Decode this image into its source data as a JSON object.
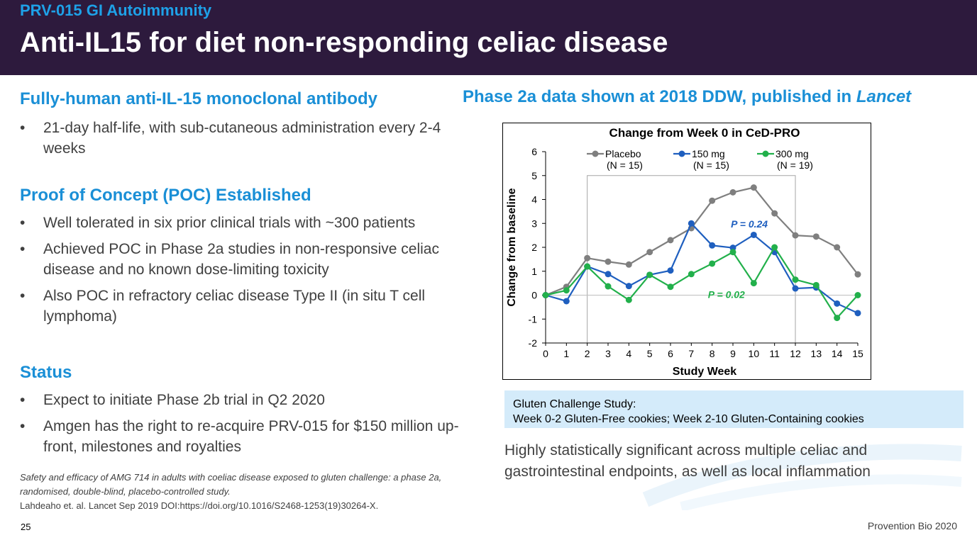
{
  "header": {
    "kicker": "PRV-015 GI Autoimmunity",
    "title": "Anti-IL15 for diet non-responding celiac disease"
  },
  "left": {
    "sections": [
      {
        "title": "Fully-human anti-IL-15 monoclonal antibody",
        "bullets": [
          "21-day half-life, with sub-cutaneous administration every 2-4 weeks"
        ]
      },
      {
        "title": "Proof of Concept (POC) Established",
        "bullets": [
          "Well tolerated in six prior clinical trials with ~300 patients",
          "Achieved POC in Phase 2a studies in non-responsive celiac disease and no known dose-limiting toxicity",
          "Also POC in refractory celiac disease Type II (in situ T cell lymphoma)"
        ]
      },
      {
        "title": "Status",
        "bullets": [
          "Expect to initiate Phase 2b trial in Q2 2020",
          "Amgen has the right to re-acquire PRV-015 for $150 million up-front, milestones and royalties"
        ]
      }
    ],
    "bullet_glyph": "•"
  },
  "right": {
    "title_prefix": "Phase 2a data shown at 2018 DDW, published in ",
    "title_italic": "Lancet",
    "study_box": {
      "line1": "Gluten Challenge Study:",
      "line2": "Week 0-2 Gluten-Free cookies; Week 2-10 Gluten-Containing cookies"
    },
    "conclusion": "Highly statistically significant across multiple celiac and gastrointestinal endpoints, as well as local inflammation"
  },
  "chart_data": {
    "type": "line",
    "title": "Change from Week 0 in CeD-PRO",
    "xlabel": "Study Week",
    "ylabel": "Change from baseline",
    "x": [
      0,
      1,
      2,
      3,
      4,
      5,
      6,
      7,
      8,
      9,
      10,
      11,
      12,
      13,
      14,
      15
    ],
    "xlim": [
      0,
      15
    ],
    "ylim": [
      -2,
      6
    ],
    "yticks": [
      -2,
      -1,
      0,
      1,
      2,
      3,
      4,
      5,
      6
    ],
    "legend_placement": "top",
    "series": [
      {
        "name": "Placebo",
        "n": "(N = 15)",
        "color": "#7f7f7f",
        "values": [
          0,
          0.35,
          1.55,
          1.4,
          1.28,
          1.8,
          2.3,
          2.8,
          3.95,
          4.3,
          4.5,
          3.42,
          2.5,
          2.45,
          2.0,
          0.87
        ]
      },
      {
        "name": "150 mg",
        "n": "(N = 15)",
        "color": "#1f5fbf",
        "values": [
          0,
          -0.25,
          1.2,
          0.88,
          0.38,
          0.85,
          1.03,
          3.0,
          2.08,
          1.98,
          2.52,
          1.8,
          0.28,
          0.32,
          -0.35,
          -0.75
        ]
      },
      {
        "name": "300 mg",
        "n": "(N = 19)",
        "color": "#22b04b",
        "values": [
          0,
          0.2,
          1.2,
          0.37,
          -0.2,
          0.85,
          0.35,
          0.88,
          1.32,
          1.8,
          0.5,
          2.0,
          0.65,
          0.42,
          -0.95,
          0.0
        ]
      }
    ],
    "annotations": [
      {
        "text": "P = 0.24",
        "color": "#1f5fbf",
        "x": 8.9,
        "y": 2.95
      },
      {
        "text": "P = 0.02",
        "color": "#22b04b",
        "x": 7.8,
        "y": 0.0
      }
    ],
    "highlight_box": {
      "x0": 2,
      "x1": 12,
      "y0": -2,
      "y1": 5
    }
  },
  "citation": {
    "italic": "Safety and efficacy of AMG 714 in adults with coeliac disease exposed to gluten challenge: a phase 2a, randomised, double-blind, placebo-controlled study.",
    "plain": "Lahdeaho et. al. Lancet Sep 2019 DOI:https://doi.org/10.1016/S2468-1253(19)30264-X."
  },
  "footer": {
    "page_number": "25",
    "brand": "Provention Bio 2020"
  }
}
